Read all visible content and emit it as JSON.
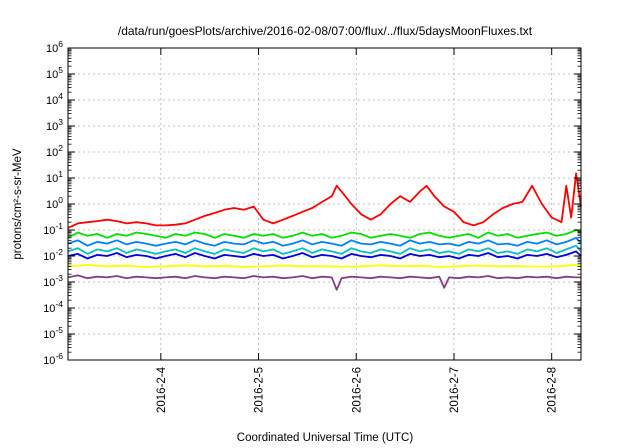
{
  "chart_data": {
    "type": "line",
    "title": "/data/run/goesPlots/archive/2016-02-08/07:00/flux/../flux/5daysMoonFluxes.txt",
    "xlabel": "Coordinated Universal Time (UTC)",
    "ylabel": "protons/cm²-s-sr-MeV",
    "yscale": "log",
    "ylim": [
      1e-06,
      1000000.0
    ],
    "xlim": [
      3.05,
      8.3
    ],
    "grid": true,
    "legend": "none",
    "x_ticks": [
      {
        "value": 4,
        "label": "2016-2-4"
      },
      {
        "value": 5,
        "label": "2016-2-5"
      },
      {
        "value": 6,
        "label": "2016-2-6"
      },
      {
        "value": 7,
        "label": "2016-2-7"
      },
      {
        "value": 8,
        "label": "2016-2-8"
      }
    ],
    "y_ticks": [
      {
        "value": 1e-06,
        "base": "10",
        "exp": "-6"
      },
      {
        "value": 1e-05,
        "base": "10",
        "exp": "-5"
      },
      {
        "value": 0.0001,
        "base": "10",
        "exp": "-4"
      },
      {
        "value": 0.001,
        "base": "10",
        "exp": "-3"
      },
      {
        "value": 0.01,
        "base": "10",
        "exp": "-2"
      },
      {
        "value": 0.1,
        "base": "10",
        "exp": "-1"
      },
      {
        "value": 1,
        "base": "10",
        "exp": "0"
      },
      {
        "value": 10,
        "base": "10",
        "exp": "1"
      },
      {
        "value": 100,
        "base": "10",
        "exp": "2"
      },
      {
        "value": 1000,
        "base": "10",
        "exp": "3"
      },
      {
        "value": 10000,
        "base": "10",
        "exp": "4"
      },
      {
        "value": 100000,
        "base": "10",
        "exp": "5"
      },
      {
        "value": 1000000,
        "base": "10",
        "exp": "6"
      }
    ],
    "x_unit_note": "x values are in days of February 2016 (e.g. 6.5 = 2016-2-6 12:00 UTC)",
    "series": [
      {
        "color": "#ff0000",
        "x": [
          3.05,
          3.15,
          3.25,
          3.35,
          3.45,
          3.55,
          3.65,
          3.75,
          3.85,
          3.95,
          4.05,
          4.15,
          4.25,
          4.35,
          4.45,
          4.55,
          4.65,
          4.75,
          4.85,
          4.95,
          5.05,
          5.15,
          5.25,
          5.35,
          5.45,
          5.55,
          5.65,
          5.75,
          5.8,
          5.85,
          5.95,
          6.05,
          6.15,
          6.25,
          6.35,
          6.45,
          6.55,
          6.65,
          6.72,
          6.8,
          6.9,
          7.0,
          7.1,
          7.2,
          7.3,
          7.4,
          7.5,
          7.6,
          7.7,
          7.8,
          7.9,
          8.0,
          8.05,
          8.1,
          8.15,
          8.2,
          8.25,
          8.3
        ],
        "y": [
          0.12,
          0.18,
          0.2,
          0.22,
          0.25,
          0.22,
          0.18,
          0.2,
          0.18,
          0.15,
          0.15,
          0.16,
          0.18,
          0.25,
          0.35,
          0.45,
          0.6,
          0.7,
          0.6,
          0.8,
          0.25,
          0.18,
          0.25,
          0.35,
          0.5,
          0.7,
          1.2,
          2.0,
          5.0,
          3.0,
          1.0,
          0.4,
          0.25,
          0.4,
          1.0,
          2.0,
          1.2,
          3.0,
          5.0,
          2.0,
          0.8,
          0.5,
          0.2,
          0.15,
          0.2,
          0.4,
          0.7,
          1.0,
          1.2,
          5.0,
          1.0,
          0.3,
          0.25,
          0.2,
          5.0,
          0.3,
          15.0,
          0.8
        ]
      },
      {
        "color": "#00e000",
        "x": [
          3.05,
          3.15,
          3.25,
          3.35,
          3.45,
          3.55,
          3.65,
          3.75,
          3.85,
          3.95,
          4.05,
          4.15,
          4.25,
          4.35,
          4.45,
          4.55,
          4.65,
          4.75,
          4.85,
          4.95,
          5.05,
          5.15,
          5.25,
          5.35,
          5.45,
          5.55,
          5.65,
          5.75,
          5.85,
          5.95,
          6.05,
          6.15,
          6.25,
          6.35,
          6.45,
          6.55,
          6.65,
          6.75,
          6.85,
          6.95,
          7.05,
          7.15,
          7.25,
          7.35,
          7.45,
          7.55,
          7.65,
          7.75,
          7.85,
          7.95,
          8.05,
          8.15,
          8.25,
          8.3
        ],
        "y": [
          0.05,
          0.08,
          0.06,
          0.07,
          0.05,
          0.07,
          0.06,
          0.08,
          0.07,
          0.06,
          0.05,
          0.07,
          0.06,
          0.08,
          0.07,
          0.05,
          0.07,
          0.06,
          0.05,
          0.07,
          0.06,
          0.07,
          0.05,
          0.06,
          0.08,
          0.06,
          0.07,
          0.05,
          0.06,
          0.08,
          0.07,
          0.05,
          0.06,
          0.07,
          0.06,
          0.05,
          0.07,
          0.08,
          0.06,
          0.05,
          0.06,
          0.07,
          0.05,
          0.08,
          0.06,
          0.07,
          0.05,
          0.06,
          0.07,
          0.08,
          0.06,
          0.07,
          0.1,
          0.08
        ]
      },
      {
        "color": "#0080ff",
        "x": [
          3.05,
          3.15,
          3.25,
          3.35,
          3.45,
          3.55,
          3.65,
          3.75,
          3.85,
          3.95,
          4.05,
          4.15,
          4.25,
          4.35,
          4.45,
          4.55,
          4.65,
          4.75,
          4.85,
          4.95,
          5.05,
          5.15,
          5.25,
          5.35,
          5.45,
          5.55,
          5.65,
          5.75,
          5.85,
          5.95,
          6.05,
          6.15,
          6.25,
          6.35,
          6.45,
          6.55,
          6.65,
          6.75,
          6.85,
          6.95,
          7.05,
          7.15,
          7.25,
          7.35,
          7.45,
          7.55,
          7.65,
          7.75,
          7.85,
          7.95,
          8.05,
          8.15,
          8.25,
          8.3
        ],
        "y": [
          0.03,
          0.04,
          0.025,
          0.035,
          0.03,
          0.04,
          0.028,
          0.035,
          0.03,
          0.025,
          0.03,
          0.035,
          0.028,
          0.04,
          0.03,
          0.025,
          0.035,
          0.03,
          0.028,
          0.04,
          0.03,
          0.035,
          0.025,
          0.03,
          0.04,
          0.028,
          0.035,
          0.03,
          0.025,
          0.04,
          0.03,
          0.028,
          0.035,
          0.03,
          0.025,
          0.04,
          0.03,
          0.035,
          0.028,
          0.03,
          0.025,
          0.035,
          0.03,
          0.04,
          0.028,
          0.03,
          0.025,
          0.035,
          0.03,
          0.04,
          0.028,
          0.035,
          0.05,
          0.03
        ]
      },
      {
        "color": "#00c0c0",
        "x": [
          3.05,
          3.15,
          3.25,
          3.35,
          3.45,
          3.55,
          3.65,
          3.75,
          3.85,
          3.95,
          4.05,
          4.15,
          4.25,
          4.35,
          4.45,
          4.55,
          4.65,
          4.75,
          4.85,
          4.95,
          5.05,
          5.15,
          5.25,
          5.35,
          5.45,
          5.55,
          5.65,
          5.75,
          5.85,
          5.95,
          6.05,
          6.15,
          6.25,
          6.35,
          6.45,
          6.55,
          6.65,
          6.75,
          6.85,
          6.95,
          7.05,
          7.15,
          7.25,
          7.35,
          7.45,
          7.55,
          7.65,
          7.75,
          7.85,
          7.95,
          8.05,
          8.15,
          8.25,
          8.3
        ],
        "y": [
          0.015,
          0.02,
          0.012,
          0.018,
          0.015,
          0.02,
          0.013,
          0.018,
          0.015,
          0.012,
          0.015,
          0.018,
          0.013,
          0.02,
          0.015,
          0.012,
          0.018,
          0.015,
          0.013,
          0.02,
          0.015,
          0.018,
          0.012,
          0.015,
          0.02,
          0.013,
          0.018,
          0.015,
          0.012,
          0.02,
          0.015,
          0.013,
          0.018,
          0.015,
          0.012,
          0.02,
          0.015,
          0.018,
          0.013,
          0.015,
          0.012,
          0.018,
          0.015,
          0.02,
          0.013,
          0.015,
          0.012,
          0.018,
          0.015,
          0.02,
          0.013,
          0.018,
          0.025,
          0.015
        ]
      },
      {
        "color": "#0000e0",
        "x": [
          3.05,
          3.15,
          3.25,
          3.35,
          3.45,
          3.55,
          3.65,
          3.75,
          3.85,
          3.95,
          4.05,
          4.15,
          4.25,
          4.35,
          4.45,
          4.55,
          4.65,
          4.75,
          4.85,
          4.95,
          5.05,
          5.15,
          5.25,
          5.35,
          5.45,
          5.55,
          5.65,
          5.75,
          5.85,
          5.95,
          6.05,
          6.15,
          6.25,
          6.35,
          6.45,
          6.55,
          6.65,
          6.75,
          6.85,
          6.95,
          7.05,
          7.15,
          7.25,
          7.35,
          7.45,
          7.55,
          7.65,
          7.75,
          7.85,
          7.95,
          8.05,
          8.15,
          8.25,
          8.3
        ],
        "y": [
          0.01,
          0.012,
          0.008,
          0.011,
          0.01,
          0.013,
          0.009,
          0.011,
          0.01,
          0.008,
          0.01,
          0.012,
          0.009,
          0.013,
          0.01,
          0.008,
          0.011,
          0.01,
          0.009,
          0.012,
          0.01,
          0.011,
          0.008,
          0.01,
          0.013,
          0.009,
          0.011,
          0.01,
          0.008,
          0.012,
          0.01,
          0.009,
          0.011,
          0.01,
          0.008,
          0.012,
          0.01,
          0.011,
          0.009,
          0.01,
          0.008,
          0.011,
          0.01,
          0.013,
          0.009,
          0.01,
          0.008,
          0.011,
          0.01,
          0.012,
          0.009,
          0.011,
          0.015,
          0.01
        ]
      },
      {
        "color": "#ffff00",
        "x": [
          3.05,
          3.25,
          3.45,
          3.65,
          3.85,
          4.05,
          4.25,
          4.45,
          4.65,
          4.85,
          5.05,
          5.25,
          5.45,
          5.65,
          5.85,
          6.05,
          6.25,
          6.45,
          6.65,
          6.85,
          7.05,
          7.25,
          7.45,
          7.65,
          7.85,
          8.05,
          8.25,
          8.3
        ],
        "y": [
          0.004,
          0.0045,
          0.004,
          0.0042,
          0.0038,
          0.004,
          0.0044,
          0.004,
          0.0042,
          0.0038,
          0.004,
          0.0043,
          0.004,
          0.0041,
          0.0039,
          0.004,
          0.0044,
          0.004,
          0.0042,
          0.0038,
          0.004,
          0.0043,
          0.004,
          0.0041,
          0.0039,
          0.004,
          0.0045,
          0.004
        ]
      },
      {
        "color": "#804080",
        "x": [
          3.05,
          3.15,
          3.25,
          3.35,
          3.45,
          3.55,
          3.65,
          3.75,
          3.85,
          3.95,
          4.05,
          4.15,
          4.25,
          4.35,
          4.45,
          4.55,
          4.65,
          4.75,
          4.85,
          4.95,
          5.05,
          5.15,
          5.25,
          5.35,
          5.45,
          5.55,
          5.65,
          5.75,
          5.8,
          5.85,
          5.95,
          6.05,
          6.15,
          6.25,
          6.35,
          6.45,
          6.55,
          6.65,
          6.75,
          6.85,
          6.9,
          6.95,
          7.05,
          7.15,
          7.25,
          7.35,
          7.45,
          7.55,
          7.65,
          7.75,
          7.85,
          7.95,
          8.05,
          8.15,
          8.25,
          8.3
        ],
        "y": [
          0.0015,
          0.0018,
          0.0014,
          0.0016,
          0.0015,
          0.0017,
          0.0014,
          0.0016,
          0.0015,
          0.0014,
          0.0015,
          0.0016,
          0.0014,
          0.0017,
          0.0015,
          0.0014,
          0.0016,
          0.0015,
          0.0014,
          0.0017,
          0.0015,
          0.0016,
          0.0014,
          0.0015,
          0.0017,
          0.0014,
          0.0016,
          0.0015,
          0.0005,
          0.0014,
          0.0016,
          0.0015,
          0.0014,
          0.0016,
          0.0015,
          0.0014,
          0.0016,
          0.0015,
          0.0014,
          0.0016,
          0.0006,
          0.0015,
          0.0014,
          0.0016,
          0.0015,
          0.0017,
          0.0014,
          0.0015,
          0.0014,
          0.0016,
          0.0015,
          0.0016,
          0.0014,
          0.0016,
          0.0015,
          0.0015
        ]
      }
    ]
  }
}
